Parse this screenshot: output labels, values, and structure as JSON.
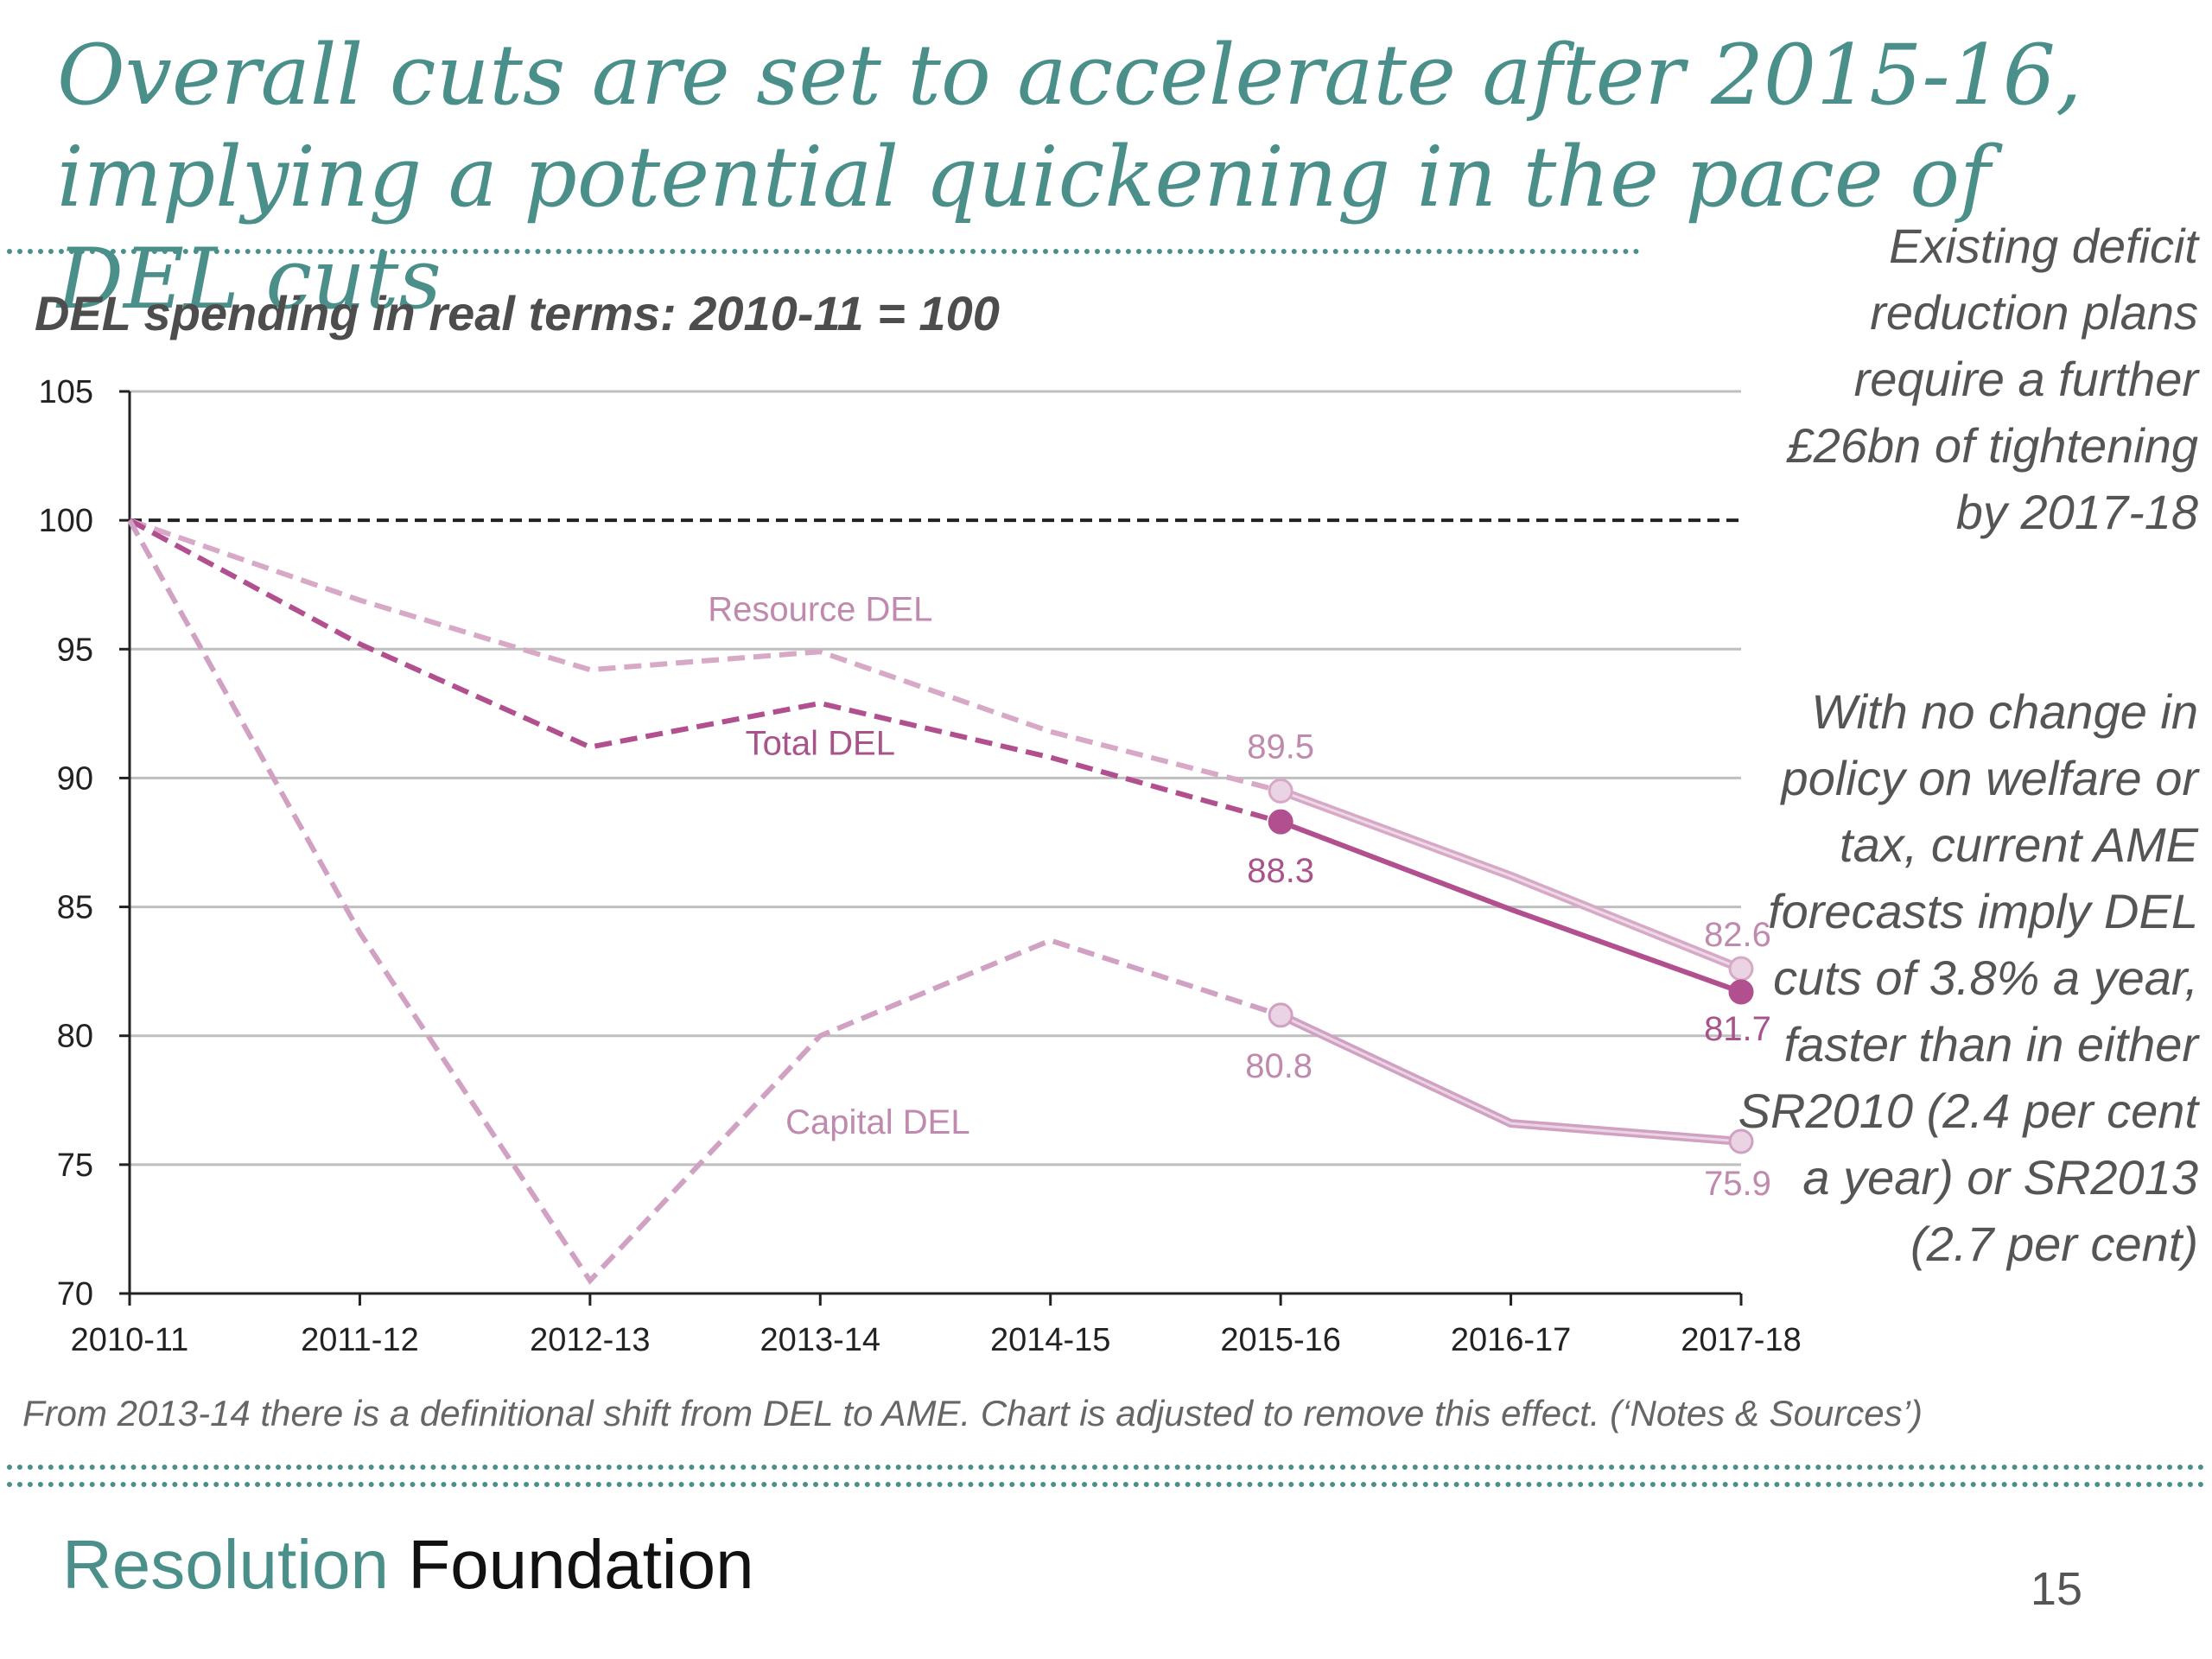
{
  "slide": {
    "title": "Overall cuts are set to accelerate after 2015-16, implying a potential quickening in the pace of DEL cuts",
    "side_note_1": "Existing deficit reduction plans require a further £26bn of tightening by 2017-18",
    "side_note_2": "With no change in policy on welfare or tax, current AME forecasts imply DEL cuts of 3.8% a year, faster than in either SR2010 (2.4 per cent a year) or SR2013 (2.7 per cent)",
    "footnote": "From 2013-14 there is a definitional shift from DEL to AME. Chart is adjusted to remove this effect. (‘Notes & Sources’)",
    "logo_word_1": "Resolution",
    "logo_word_2": "Foundation",
    "page_number": "15"
  },
  "colors": {
    "title": "#4a8f8a",
    "resource": "#d7a9c7",
    "total": "#b2508f",
    "capital": "#d1a1c3",
    "grid": "#bfbfbf",
    "axis": "#222222",
    "reference": "#222222"
  },
  "chart_data": {
    "type": "line",
    "title": "DEL spending in real terms: 2010-11 = 100",
    "xlabel": "",
    "ylabel": "",
    "categories": [
      "2010-11",
      "2011-12",
      "2012-13",
      "2013-14",
      "2014-15",
      "2015-16",
      "2016-17",
      "2017-18"
    ],
    "ylim": [
      70,
      105
    ],
    "yticks": [
      105,
      100,
      95,
      90,
      85,
      80,
      75,
      70
    ],
    "grid": true,
    "reference_line": 100,
    "projection_starts_at": "2015-16",
    "series": [
      {
        "name": "Resource DEL",
        "values": [
          100,
          96.9,
          94.2,
          94.9,
          91.8,
          89.5,
          86.2,
          82.6
        ]
      },
      {
        "name": "Total DEL",
        "values": [
          100,
          95.2,
          91.2,
          92.9,
          90.8,
          88.3,
          84.9,
          81.7
        ]
      },
      {
        "name": "Capital DEL",
        "values": [
          100,
          84.0,
          70.5,
          80.0,
          83.7,
          80.8,
          76.6,
          75.9
        ]
      }
    ],
    "data_labels": [
      {
        "series": "Resource DEL",
        "category": "2015-16",
        "text": "89.5"
      },
      {
        "series": "Total DEL",
        "category": "2015-16",
        "text": "88.3"
      },
      {
        "series": "Capital DEL",
        "category": "2015-16",
        "text": "80.8"
      },
      {
        "series": "Resource DEL",
        "category": "2017-18",
        "text": "82.6"
      },
      {
        "series": "Total DEL",
        "category": "2017-18",
        "text": "81.7"
      },
      {
        "series": "Capital DEL",
        "category": "2017-18",
        "text": "75.9"
      }
    ]
  }
}
